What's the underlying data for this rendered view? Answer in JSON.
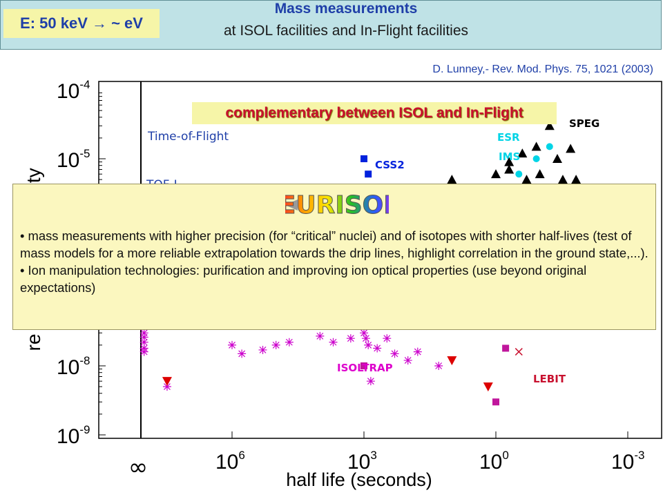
{
  "header": {
    "badge": "E: 50 keV → ~ eV",
    "title": "Mass measurements",
    "subtitle": "at ISOL facilities and In-Flight facilities"
  },
  "reference": "D. Lunney,- Rev. Mod. Phys. 75, 1021 (2003)",
  "complement_banner": "complementary between ISOL and In-Flight",
  "callout": {
    "logo_text": "EURISOL",
    "bullets": [
      "• mass measurements with higher precision (for “critical” nuclei) and of isotopes with shorter half-lives (test of mass models for a more reliable extrapolation towards the drip lines, highlight correlation in the ground state,...).",
      "• Ion manipulation technologies: purification and improving ion optical properties (use beyond original expectations)"
    ]
  },
  "labels": {
    "tof": "Time-of-Flight",
    "tof_partial": "TOF-I",
    "speg": "SPEG",
    "esr": "ESR",
    "ims": "IMS",
    "css2": "CSS2",
    "isoltrap": "ISOLTRAP",
    "lebit": "LEBIT"
  },
  "colors": {
    "tof": "#1f3fa8",
    "speg": "#000000",
    "esr": "#00d4e6",
    "ims": "#00d4e6",
    "css2": "#0022dd",
    "isoltrap": "#dd00cc",
    "lebit": "#c8102e",
    "asterisk": "#cc00cc",
    "isoltrap_square": "#c0169c",
    "triangle_down": "#dd0000"
  },
  "chart_data": {
    "type": "scatter",
    "xlabel": "half life (seconds)",
    "ylabel": "re...nty",
    "ylabel_visible": [
      "nty",
      "re"
    ],
    "xscale": "log, reversed",
    "yscale": "log",
    "x_ticks": [
      {
        "base": "10",
        "exp": "6"
      },
      {
        "base": "10",
        "exp": "3"
      },
      {
        "base": "10",
        "exp": "0"
      },
      {
        "base": "10",
        "exp": "-3"
      }
    ],
    "x_tick_infinity": "∞",
    "y_ticks": [
      {
        "base": "10",
        "exp": "-4"
      },
      {
        "base": "10",
        "exp": "-5"
      },
      {
        "base": "10",
        "exp": "-8"
      },
      {
        "base": "10",
        "exp": "-9"
      }
    ],
    "series": [
      {
        "name": "SPEG",
        "marker": "triangle-up",
        "color": "#000000",
        "points": [
          [
            0.06,
            3e-05
          ],
          [
            0.12,
            1.5e-05
          ],
          [
            0.02,
            1.4e-05
          ],
          [
            0.25,
            1.2e-05
          ],
          [
            0.04,
            1e-05
          ],
          [
            0.5,
            9e-06
          ],
          [
            0.5,
            7e-06
          ],
          [
            0.1,
            6e-06
          ],
          [
            1,
            6e-06
          ],
          [
            10,
            5e-06
          ],
          [
            0.03,
            5e-06
          ],
          [
            0.2,
            5e-06
          ],
          [
            0.015,
            5e-06
          ]
        ]
      },
      {
        "name": "ESR/IMS",
        "marker": "circle",
        "color": "#00d4e6",
        "points": [
          [
            0.06,
            1.5e-05
          ],
          [
            0.12,
            1e-05
          ],
          [
            0.3,
            6e-06
          ]
        ]
      },
      {
        "name": "CSS2",
        "marker": "square",
        "color": "#0022dd",
        "points": [
          [
            1000,
            1e-05
          ],
          [
            800,
            6e-06
          ]
        ]
      },
      {
        "name": "ISOLTRAP (asterisks)",
        "marker": "asterisk",
        "color": "#cc00cc",
        "points": [
          [
            100000000.0,
            3e-08
          ],
          [
            100000000.0,
            2.2e-08
          ],
          [
            100000000.0,
            1.8e-08
          ],
          [
            100000000.0,
            2.6e-08
          ],
          [
            100000000.0,
            1.6e-08
          ],
          [
            30000000,
            5e-09
          ],
          [
            1000000.0,
            2e-08
          ],
          [
            600000,
            1.5e-08
          ],
          [
            200000,
            1.7e-08
          ],
          [
            100000,
            2e-08
          ],
          [
            50000,
            2.2e-08
          ],
          [
            10000,
            2.7e-08
          ],
          [
            5000,
            2.2e-08
          ],
          [
            2000,
            2.5e-08
          ],
          [
            1000,
            3e-08
          ],
          [
            800,
            2e-08
          ],
          [
            500,
            1.8e-08
          ],
          [
            300,
            2.5e-08
          ],
          [
            200,
            1.5e-08
          ],
          [
            100,
            1.2e-08
          ],
          [
            60,
            1.6e-08
          ],
          [
            20,
            1e-08
          ],
          [
            900,
            2.5e-08
          ],
          [
            700,
            6e-09
          ]
        ]
      },
      {
        "name": "ISOLTRAP",
        "marker": "square",
        "color": "#c0169c",
        "points": [
          [
            1000,
            1e-08
          ],
          [
            0.6,
            1.8e-08
          ],
          [
            1,
            3e-09
          ]
        ]
      },
      {
        "name": "LEBIT",
        "marker": "triangle-down",
        "color": "#dd0000",
        "points": [
          [
            30000000,
            6e-09
          ],
          [
            10,
            1.2e-08
          ],
          [
            1.5,
            5e-09
          ]
        ]
      },
      {
        "name": "LEBIT",
        "marker": "cross",
        "color": "#c8102e",
        "points": [
          [
            0.3,
            1.6e-08
          ]
        ]
      }
    ]
  }
}
